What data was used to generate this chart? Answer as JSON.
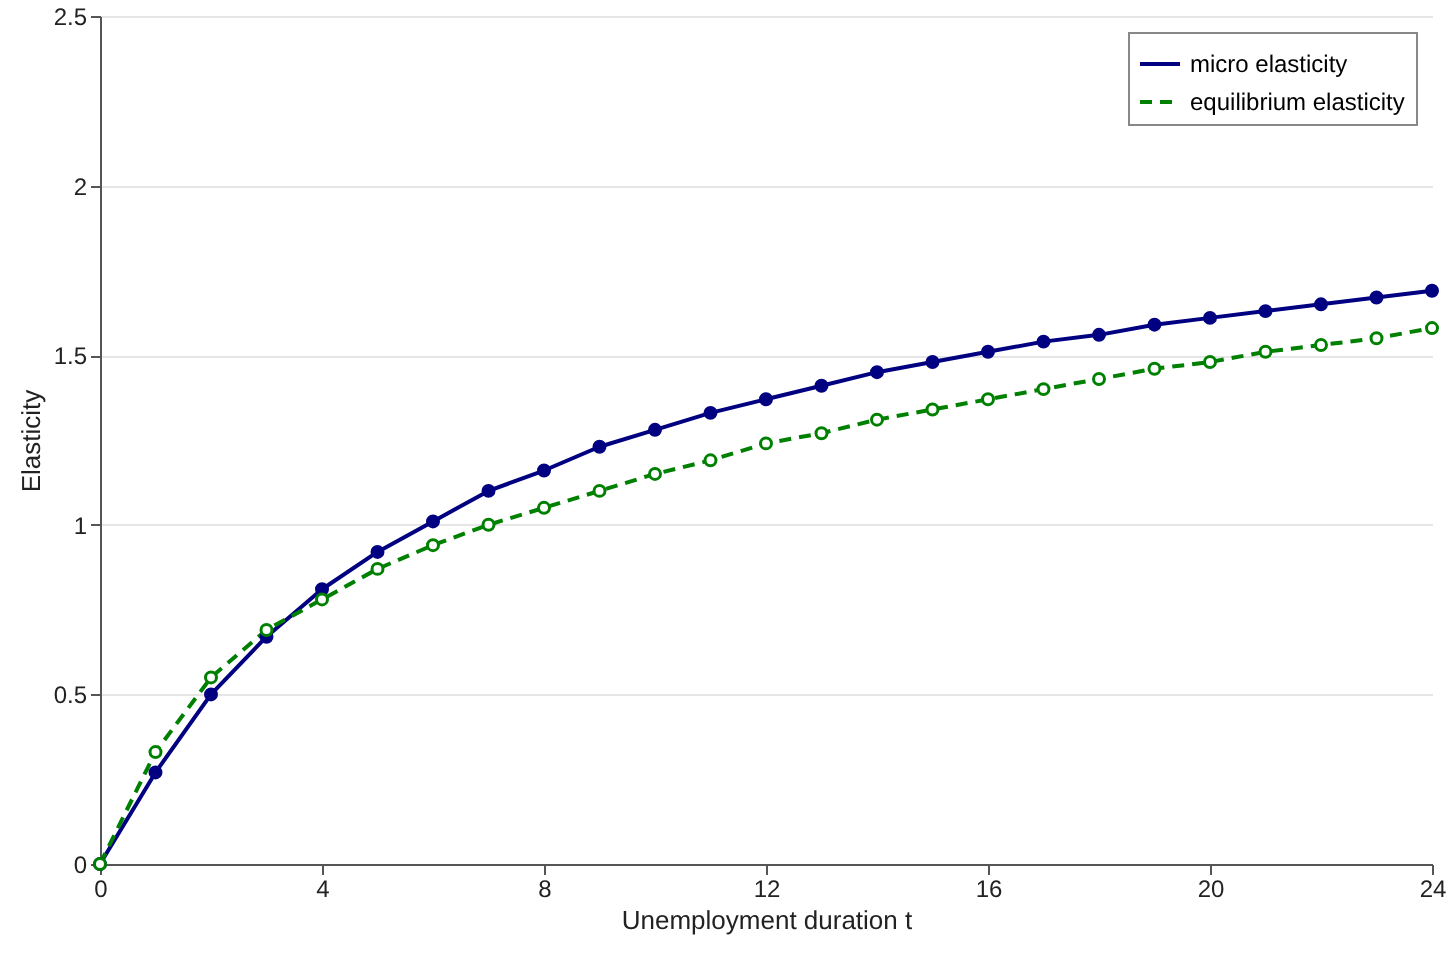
{
  "chart_data": {
    "type": "line",
    "xlabel": "Unemployment duration t",
    "ylabel": "Elasticity",
    "x": [
      0,
      1,
      2,
      3,
      4,
      5,
      6,
      7,
      8,
      9,
      10,
      11,
      12,
      13,
      14,
      15,
      16,
      17,
      18,
      19,
      20,
      21,
      22,
      23,
      24
    ],
    "series": [
      {
        "name": "micro elasticity",
        "color": "#000080",
        "line_style": "solid",
        "values": [
          0,
          0.27,
          0.5,
          0.67,
          0.81,
          0.92,
          1.01,
          1.1,
          1.16,
          1.23,
          1.28,
          1.33,
          1.37,
          1.41,
          1.45,
          1.48,
          1.51,
          1.54,
          1.56,
          1.59,
          1.61,
          1.63,
          1.65,
          1.67,
          1.69
        ]
      },
      {
        "name": "equilibrium elasticity",
        "color": "#008000",
        "line_style": "dashed",
        "values": [
          0,
          0.33,
          0.55,
          0.69,
          0.78,
          0.87,
          0.94,
          1.0,
          1.05,
          1.1,
          1.15,
          1.19,
          1.24,
          1.27,
          1.31,
          1.34,
          1.37,
          1.4,
          1.43,
          1.46,
          1.48,
          1.51,
          1.53,
          1.55,
          1.58
        ]
      }
    ],
    "xlim": [
      0,
      24
    ],
    "xticks": [
      0,
      4,
      8,
      12,
      16,
      20,
      24
    ],
    "ylim": [
      0,
      2.5
    ],
    "yticks": [
      0,
      0.5,
      1,
      1.5,
      2,
      2.5
    ],
    "grid": "y",
    "legend": "top right",
    "marker": "circle"
  }
}
